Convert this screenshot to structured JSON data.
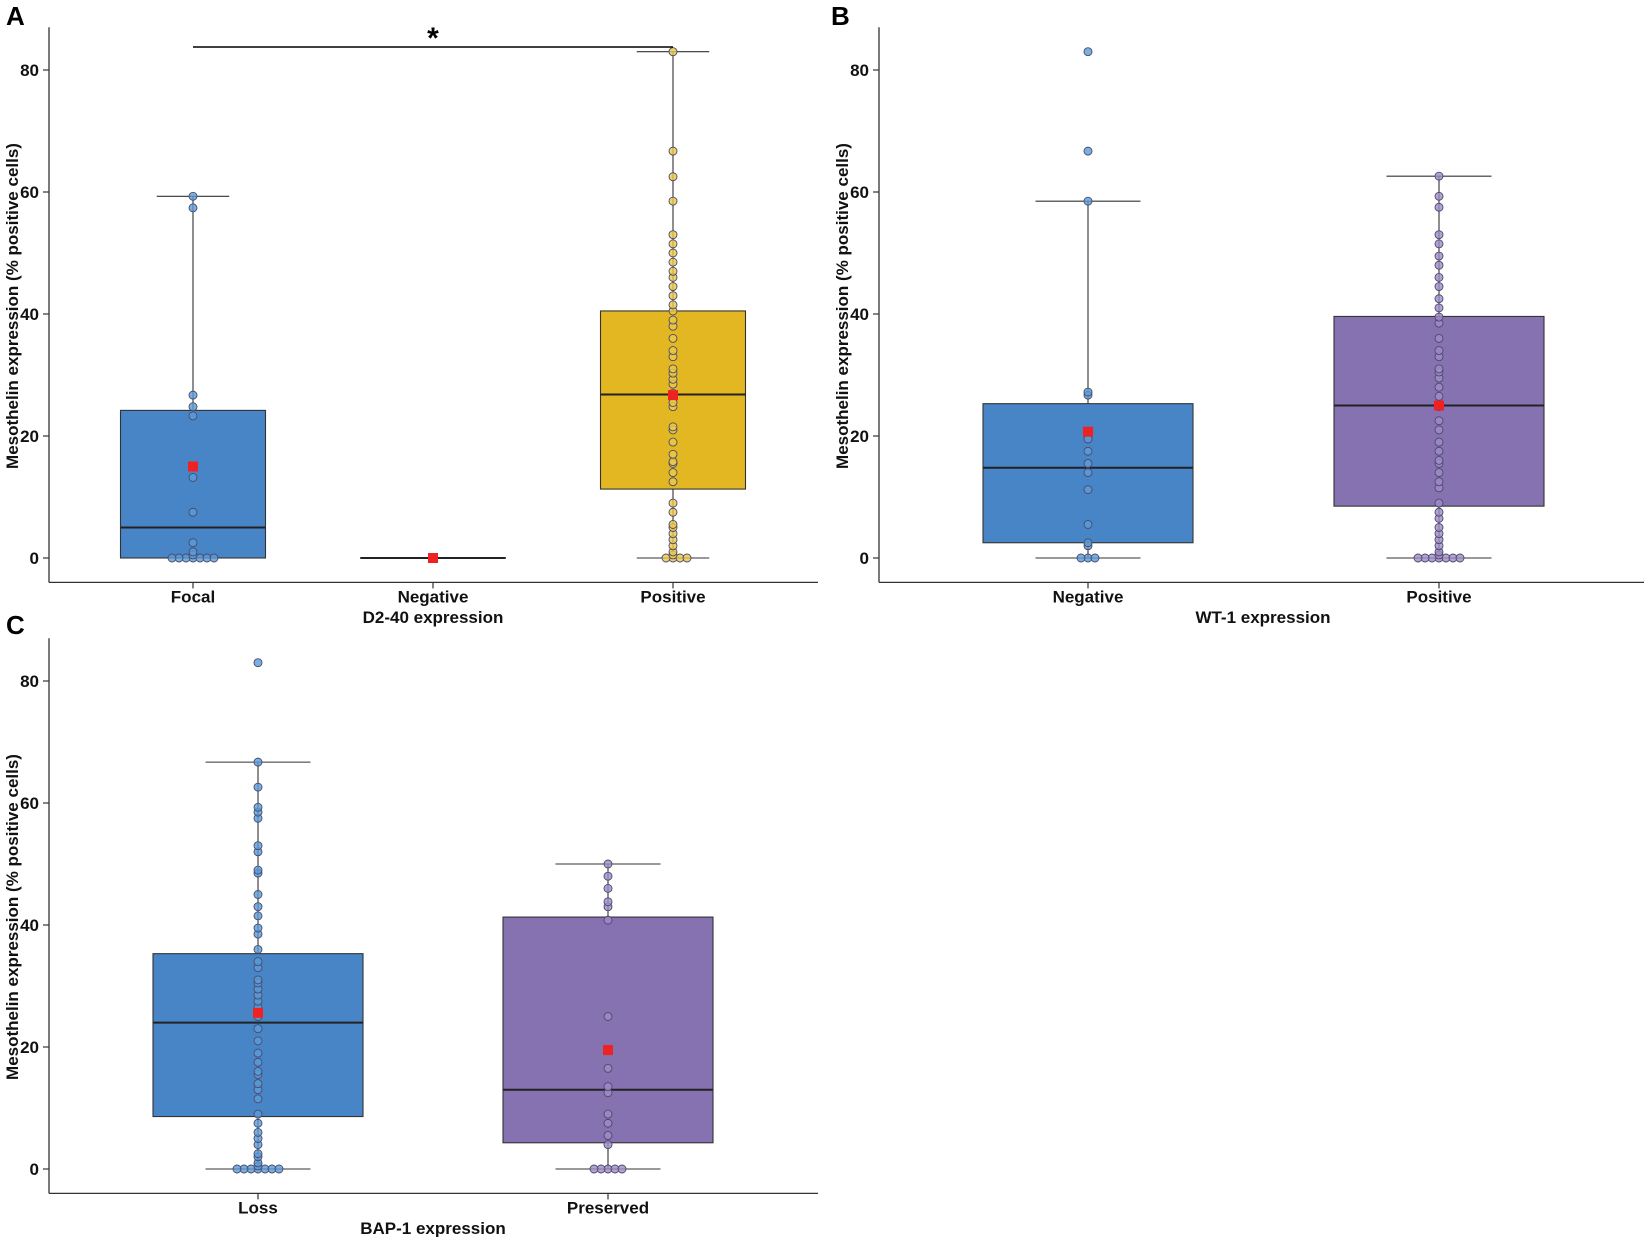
{
  "colors": {
    "blue_box": "#4885C6",
    "purple_box": "#8671B1",
    "yellow_box": "#E2B721",
    "mean_marker": "#EE2222",
    "blue_point": "#5A9BD8",
    "purple_point": "#A08CC8",
    "yellow_point": "#EBC84A"
  },
  "chart_data": [
    {
      "panel": "A",
      "type": "box",
      "xlabel": "D2-40 expression",
      "ylabel": "Mesothelin expression (% positive cells)",
      "ylim": [
        -4,
        87
      ],
      "yticks": [
        0,
        20,
        40,
        60,
        80
      ],
      "significance": {
        "label": "*",
        "from": "Focal",
        "to": "Positive"
      },
      "groups": [
        {
          "name": "Focal",
          "color": "blue",
          "whisker_low": 0,
          "q1": 0,
          "median": 5,
          "q3": 24.2,
          "whisker_high": 59.3,
          "mean": 15,
          "points": [
            0,
            0,
            0,
            0,
            0,
            0,
            0,
            0.5,
            1,
            2.5,
            7.5,
            13.2,
            23.3,
            24.8,
            26.7,
            57.4,
            59.3
          ]
        },
        {
          "name": "Negative",
          "color": "yellow",
          "whisker_low": 0,
          "q1": 0,
          "median": 0,
          "q3": 0,
          "whisker_high": 0,
          "mean": 0,
          "points": [
            0
          ]
        },
        {
          "name": "Positive",
          "color": "yellow",
          "whisker_low": 0,
          "q1": 11.3,
          "median": 26.8,
          "q3": 40.5,
          "whisker_high": 83,
          "mean": 26.7,
          "points": [
            0,
            0,
            0,
            0,
            0.5,
            1,
            2,
            3,
            4,
            5,
            5.5,
            7.5,
            9,
            12.5,
            14,
            15.5,
            15.8,
            17,
            19,
            21,
            21.5,
            24.8,
            25.5,
            27,
            28.5,
            29.3,
            30.3,
            31,
            33,
            34,
            36,
            38,
            39,
            40.5,
            41.5,
            43,
            44.5,
            46,
            47,
            48.5,
            50,
            51.5,
            53,
            58.5,
            62.5,
            66.7,
            83
          ]
        }
      ]
    },
    {
      "panel": "B",
      "type": "box",
      "xlabel": "WT-1 expression",
      "ylabel": "Mesothelin expression (% positive cells)",
      "ylim": [
        -4,
        87
      ],
      "yticks": [
        0,
        20,
        40,
        60,
        80
      ],
      "groups": [
        {
          "name": "Negative",
          "color": "blue",
          "whisker_low": 0,
          "q1": 2.5,
          "median": 14.8,
          "q3": 25.3,
          "whisker_high": 58.5,
          "mean": 20.7,
          "points": [
            0,
            0,
            0,
            2,
            2.5,
            5.5,
            11.2,
            14,
            15.5,
            17.5,
            19.5,
            26.7,
            27.2,
            58.5,
            66.7,
            83
          ]
        },
        {
          "name": "Positive",
          "color": "purple",
          "whisker_low": 0,
          "q1": 8.5,
          "median": 25,
          "q3": 39.6,
          "whisker_high": 62.6,
          "mean": 25,
          "points": [
            0,
            0,
            0,
            0,
            0,
            0,
            0,
            0.5,
            1,
            2,
            3,
            4,
            5,
            6.5,
            7.5,
            9,
            11.5,
            12.5,
            14,
            15.5,
            16,
            17.5,
            19,
            21,
            22.5,
            24.8,
            26.5,
            28,
            29.5,
            30.5,
            31,
            33,
            34,
            36,
            38.5,
            39.5,
            41,
            42.5,
            44.5,
            46,
            48,
            49.5,
            51.5,
            53,
            57.5,
            59.3,
            62.6
          ]
        }
      ]
    },
    {
      "panel": "C",
      "type": "box",
      "xlabel": "BAP-1 expression",
      "ylabel": "Mesothelin expression (% positive cells)",
      "ylim": [
        -4,
        87
      ],
      "yticks": [
        0,
        20,
        40,
        60,
        80
      ],
      "groups": [
        {
          "name": "Loss",
          "color": "blue",
          "whisker_low": 0,
          "q1": 8.6,
          "median": 24,
          "q3": 35.3,
          "whisker_high": 66.7,
          "mean": 25.6,
          "points": [
            0,
            0,
            0,
            0,
            0,
            0,
            0,
            0.5,
            1,
            2,
            2.5,
            4,
            5,
            6,
            7.5,
            9,
            11.5,
            13,
            14,
            15.5,
            16,
            17.5,
            19,
            21,
            23,
            25,
            26.5,
            27.5,
            28.5,
            29.5,
            30.5,
            31,
            33,
            34,
            36,
            38.5,
            39.5,
            41.5,
            43,
            45,
            48.5,
            49,
            52,
            53,
            57.5,
            58.5,
            59.3,
            62.6,
            66.7,
            83
          ]
        },
        {
          "name": "Preserved",
          "color": "purple",
          "whisker_low": 0,
          "q1": 4.3,
          "median": 13,
          "q3": 41.3,
          "whisker_high": 50,
          "mean": 19.5,
          "points": [
            0,
            0,
            0,
            0,
            0,
            4,
            5.5,
            7.5,
            9,
            12.5,
            13.5,
            16.5,
            25,
            40.8,
            43,
            43.8,
            46,
            48,
            50
          ]
        }
      ]
    }
  ]
}
